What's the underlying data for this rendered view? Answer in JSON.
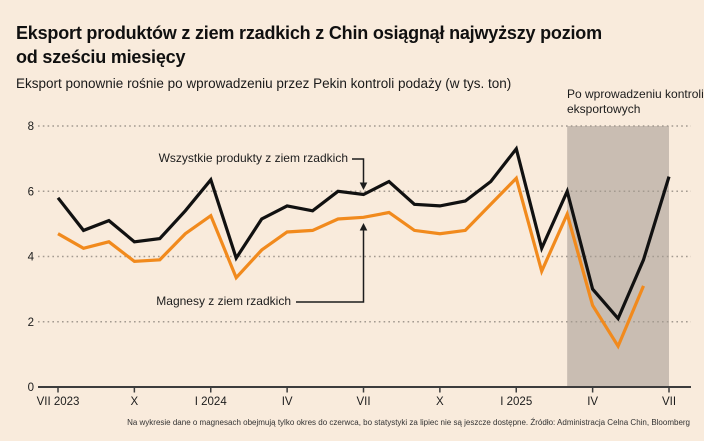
{
  "header": {
    "title_lines": [
      "Eksport produktów z ziem rzadkich z Chin osiągnął najwyższy poziom",
      "od sześciu miesięcy"
    ],
    "subtitle": "Eksport ponownie rośnie po wprowadzeniu przez Pekin kontroli podaży (w tys. ton)"
  },
  "chart_data": {
    "type": "line",
    "unit": "tys. ton",
    "months_count": 25,
    "x_range": "VII 2023 – VII 2025 (monthly)",
    "x_tick_labels": [
      "VII 2023",
      "X",
      "I 2024",
      "IV",
      "VII",
      "X",
      "I 2025",
      "IV",
      "VII"
    ],
    "x_tick_month_index": [
      0,
      3,
      6,
      9,
      12,
      15,
      18,
      21,
      24
    ],
    "ylim": [
      0,
      8
    ],
    "y_ticks": [
      0,
      2,
      4,
      6,
      8
    ],
    "grid": "dotted-horizontal",
    "series": [
      {
        "name": "Wszystkie produkty z ziem rzadkich",
        "color": "#111111",
        "values": [
          5.8,
          4.8,
          5.1,
          4.45,
          4.55,
          5.4,
          6.35,
          3.95,
          5.15,
          5.55,
          5.4,
          6.0,
          5.9,
          6.3,
          5.6,
          5.55,
          5.7,
          6.3,
          7.3,
          4.25,
          6.0,
          3.0,
          2.1,
          3.9,
          6.45
        ]
      },
      {
        "name": "Magnesy z ziem rzadkich",
        "color": "#f18a1d",
        "values": [
          4.7,
          4.25,
          4.45,
          3.85,
          3.9,
          4.7,
          5.25,
          3.35,
          4.2,
          4.75,
          4.8,
          5.15,
          5.2,
          5.35,
          4.8,
          4.7,
          4.8,
          5.6,
          6.4,
          3.55,
          5.3,
          2.5,
          1.25,
          3.1
        ]
      }
    ],
    "shaded_region": {
      "label": "Po wprowadzeniu kontroli eksportowych",
      "from_month_index": 20,
      "to_month_index": 24,
      "color": "#c9bdb2"
    },
    "footnote": "Na wykresie dane o magnesach obejmują tylko okres do czerwca, bo statystyki za lipiec nie są jeszcze dostępne. Źródło: Administracja Celna Chin, Bloomberg"
  },
  "colors": {
    "background": "#f9ebdc",
    "line_black": "#111111",
    "accent_orange": "#f18a1d",
    "shade": "#c9bdb2",
    "gridline": "#a39a90",
    "axis": "#3d3d3d"
  }
}
